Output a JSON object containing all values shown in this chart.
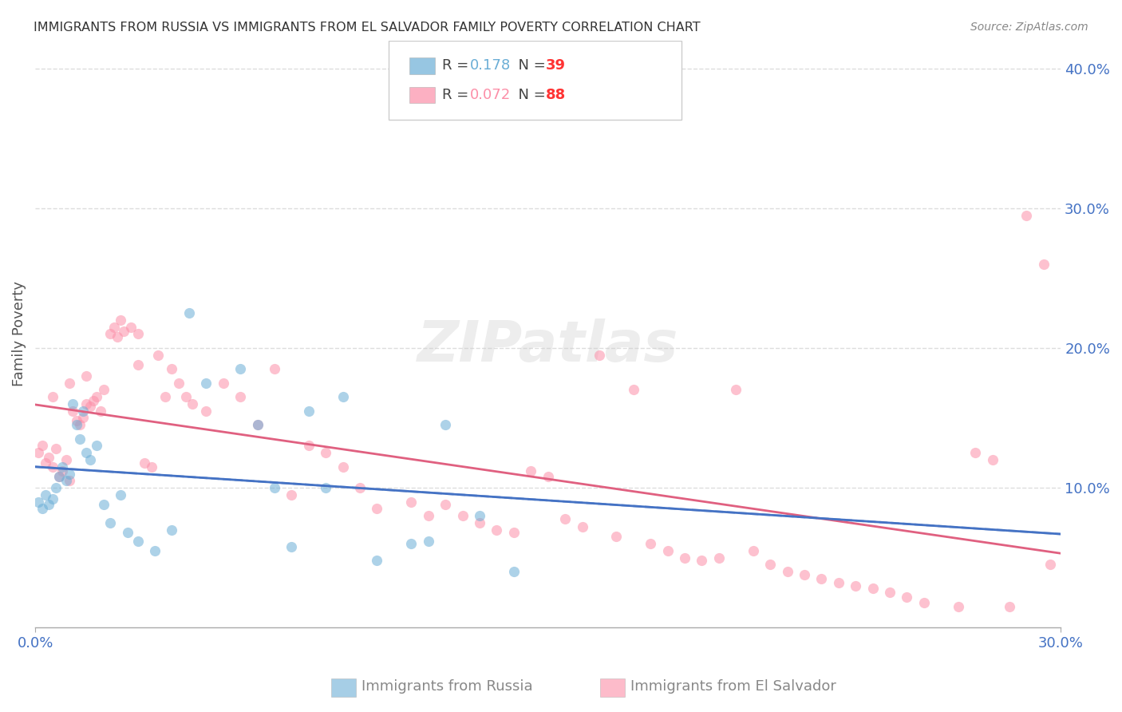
{
  "title": "IMMIGRANTS FROM RUSSIA VS IMMIGRANTS FROM EL SALVADOR FAMILY POVERTY CORRELATION CHART",
  "source": "Source: ZipAtlas.com",
  "xlabel_russia": "Immigrants from Russia",
  "xlabel_salvador": "Immigrants from El Salvador",
  "ylabel": "Family Poverty",
  "xlim": [
    0.0,
    0.3
  ],
  "ylim": [
    0.0,
    0.42
  ],
  "yticks": [
    0.1,
    0.2,
    0.3,
    0.4
  ],
  "xticks": [
    0.0,
    0.3
  ],
  "xtick_labels": [
    "0.0%",
    "30.0%"
  ],
  "ytick_labels": [
    "10.0%",
    "20.0%",
    "30.0%",
    "40.0%"
  ],
  "russia_color": "#6baed6",
  "salvador_color": "#fc8fa8",
  "russia_line_color": "#4472c4",
  "salvador_line_color": "#e06080",
  "russia_R": 0.178,
  "russia_N": 39,
  "salvador_R": 0.072,
  "salvador_N": 88,
  "russia_scatter_x": [
    0.001,
    0.002,
    0.003,
    0.004,
    0.005,
    0.006,
    0.007,
    0.008,
    0.009,
    0.01,
    0.011,
    0.012,
    0.013,
    0.014,
    0.015,
    0.016,
    0.018,
    0.02,
    0.022,
    0.025,
    0.027,
    0.03,
    0.035,
    0.04,
    0.045,
    0.05,
    0.06,
    0.065,
    0.07,
    0.075,
    0.08,
    0.085,
    0.09,
    0.1,
    0.11,
    0.115,
    0.12,
    0.13,
    0.14
  ],
  "russia_scatter_y": [
    0.09,
    0.085,
    0.095,
    0.088,
    0.092,
    0.1,
    0.108,
    0.115,
    0.105,
    0.11,
    0.16,
    0.145,
    0.135,
    0.155,
    0.125,
    0.12,
    0.13,
    0.088,
    0.075,
    0.095,
    0.068,
    0.062,
    0.055,
    0.07,
    0.225,
    0.175,
    0.185,
    0.145,
    0.1,
    0.058,
    0.155,
    0.1,
    0.165,
    0.048,
    0.06,
    0.062,
    0.145,
    0.08,
    0.04
  ],
  "salvador_scatter_x": [
    0.001,
    0.002,
    0.003,
    0.004,
    0.005,
    0.006,
    0.007,
    0.008,
    0.009,
    0.01,
    0.011,
    0.012,
    0.013,
    0.014,
    0.015,
    0.016,
    0.017,
    0.018,
    0.019,
    0.02,
    0.022,
    0.023,
    0.024,
    0.025,
    0.026,
    0.028,
    0.03,
    0.032,
    0.034,
    0.036,
    0.038,
    0.04,
    0.042,
    0.044,
    0.046,
    0.05,
    0.055,
    0.06,
    0.065,
    0.07,
    0.075,
    0.08,
    0.085,
    0.09,
    0.095,
    0.1,
    0.11,
    0.115,
    0.12,
    0.125,
    0.13,
    0.135,
    0.14,
    0.145,
    0.15,
    0.155,
    0.16,
    0.165,
    0.17,
    0.175,
    0.18,
    0.185,
    0.19,
    0.195,
    0.2,
    0.205,
    0.21,
    0.215,
    0.22,
    0.225,
    0.23,
    0.235,
    0.24,
    0.245,
    0.25,
    0.255,
    0.26,
    0.27,
    0.275,
    0.28,
    0.285,
    0.29,
    0.295,
    0.297,
    0.005,
    0.01,
    0.015,
    0.03
  ],
  "salvador_scatter_y": [
    0.125,
    0.13,
    0.118,
    0.122,
    0.115,
    0.128,
    0.108,
    0.112,
    0.12,
    0.105,
    0.155,
    0.148,
    0.145,
    0.15,
    0.16,
    0.158,
    0.162,
    0.165,
    0.155,
    0.17,
    0.21,
    0.215,
    0.208,
    0.22,
    0.212,
    0.215,
    0.21,
    0.118,
    0.115,
    0.195,
    0.165,
    0.185,
    0.175,
    0.165,
    0.16,
    0.155,
    0.175,
    0.165,
    0.145,
    0.185,
    0.095,
    0.13,
    0.125,
    0.115,
    0.1,
    0.085,
    0.09,
    0.08,
    0.088,
    0.08,
    0.075,
    0.07,
    0.068,
    0.112,
    0.108,
    0.078,
    0.072,
    0.195,
    0.065,
    0.17,
    0.06,
    0.055,
    0.05,
    0.048,
    0.05,
    0.17,
    0.055,
    0.045,
    0.04,
    0.038,
    0.035,
    0.032,
    0.03,
    0.028,
    0.025,
    0.022,
    0.018,
    0.015,
    0.125,
    0.12,
    0.015,
    0.295,
    0.26,
    0.045,
    0.165,
    0.175,
    0.18,
    0.188
  ],
  "bg_color": "#ffffff",
  "grid_color": "#dddddd",
  "title_color": "#333333",
  "axis_label_color": "#555555",
  "tick_color": "#4472c4",
  "watermark_text": "ZIPatlas",
  "watermark_color": "#cccccc"
}
